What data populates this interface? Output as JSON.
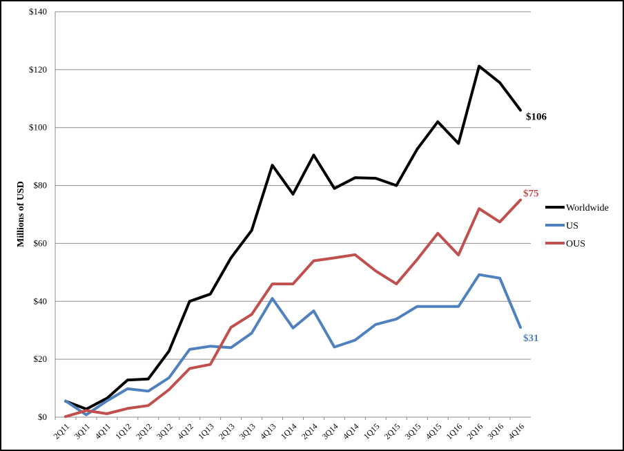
{
  "chart_data": {
    "type": "line",
    "ylabel": "Millions of USD",
    "ylim": [
      0,
      140
    ],
    "yticks": [
      "$0",
      "$20",
      "$40",
      "$60",
      "$80",
      "$100",
      "$120",
      "$140"
    ],
    "grid": true,
    "legend": "right",
    "categories": [
      "2Q11",
      "3Q11",
      "4Q11",
      "1Q12",
      "2Q12",
      "3Q12",
      "4Q12",
      "1Q13",
      "2Q13",
      "3Q13",
      "4Q13",
      "1Q14",
      "2Q14",
      "3Q14",
      "4Q14",
      "1Q15",
      "2Q15",
      "3Q15",
      "4Q15",
      "1Q16",
      "2Q16",
      "3Q16",
      "4Q16"
    ],
    "series": [
      {
        "name": "Worldwide",
        "color": "#000000",
        "values": [
          5.5,
          2.8,
          6.5,
          12.8,
          13.2,
          22.8,
          40.0,
          42.5,
          55.0,
          64.5,
          87.0,
          77.0,
          90.5,
          79.0,
          82.7,
          82.5,
          80.0,
          92.5,
          102.0,
          94.5,
          121.2,
          115.5,
          106.0
        ],
        "end_label": "$106"
      },
      {
        "name": "US",
        "color": "#4e81bd",
        "values": [
          5.6,
          0.8,
          5.6,
          9.8,
          9.0,
          13.6,
          23.4,
          24.5,
          24.0,
          29.0,
          41.0,
          30.8,
          36.7,
          24.2,
          26.6,
          32.0,
          33.9,
          38.2,
          38.2,
          38.2,
          49.2,
          48.0,
          31.0
        ],
        "end_label": "$31"
      },
      {
        "name": "OUS",
        "color": "#c0504d",
        "values": [
          0.2,
          2.3,
          1.2,
          3.0,
          4.0,
          9.5,
          16.8,
          18.2,
          31.0,
          35.5,
          46.0,
          46.0,
          54.0,
          55.0,
          56.1,
          50.5,
          46.0,
          54.4,
          63.5,
          56.0,
          72.0,
          67.4,
          75.0
        ],
        "end_label": "$75"
      }
    ]
  }
}
